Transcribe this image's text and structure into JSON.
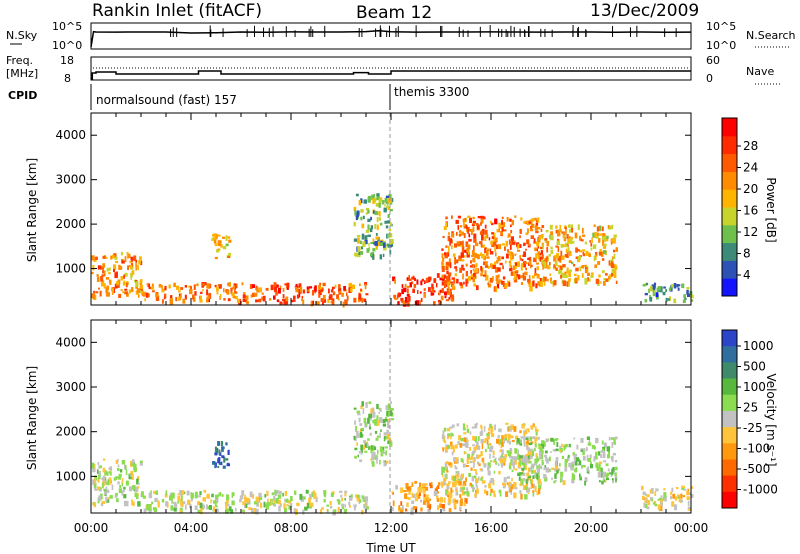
{
  "header": {
    "station": "Rankin Inlet (fitACF)",
    "beam": "Beam 12",
    "date": "13/Dec/2009"
  },
  "noise_panel": {
    "left_label": "N.Sky",
    "left_ticks": [
      "10^5",
      "10^0"
    ],
    "right_ticks": [
      "10^5",
      "10^0"
    ],
    "right_label": "N.Search"
  },
  "freq_panel": {
    "left_label_1": "Freq.",
    "left_label_2": "[MHz]",
    "left_ticks": [
      "18",
      "8"
    ],
    "right_ticks": [
      "60",
      "0"
    ],
    "right_label": "Nave"
  },
  "cpid_panel": {
    "label": "CPID",
    "programs": [
      {
        "name": "normalsound (fast) 157"
      },
      {
        "name": "themis 3300"
      }
    ]
  },
  "x_axis": {
    "label": "Time UT",
    "ticks": [
      "00:00",
      "04:00",
      "08:00",
      "12:00",
      "16:00",
      "20:00",
      "00:00"
    ]
  },
  "y_axis": {
    "label": "Slant Range [km]",
    "ticks": [
      "4000",
      "3000",
      "2000",
      "1000"
    ]
  },
  "power_scale": {
    "label": "Power [dB]",
    "ticks": [
      "28",
      "24",
      "20",
      "16",
      "12",
      "8",
      "4"
    ],
    "colors": [
      "#1414ff",
      "#2c52b6",
      "#3c8a78",
      "#6fbf4d",
      "#c8d42c",
      "#ffb400",
      "#ff8c00",
      "#ff5a00",
      "#ff2a00",
      "#ff0000"
    ]
  },
  "velocity_scale": {
    "label": "Velocity [m s⁻¹]",
    "ticks": [
      "1000",
      "500",
      "100",
      "25",
      "-25",
      "-100",
      "-500",
      "-1000"
    ],
    "colors": [
      "#2a45c8",
      "#2f6fa0",
      "#3f8a6a",
      "#56b83c",
      "#8cdc52",
      "#c2c2c2",
      "#ffc43a",
      "#ff9a10",
      "#ff6a00",
      "#ff3000",
      "#ff0000"
    ]
  },
  "chart_data": [
    {
      "type": "line",
      "panel": "noise",
      "x_range_hours": [
        0,
        24
      ],
      "y_scale": "log",
      "ylim": [
        1,
        100000
      ],
      "series": [
        {
          "x": [
            0,
            0.1,
            0.2,
            1,
            2,
            3,
            4,
            5,
            6,
            7,
            8,
            9,
            10,
            11,
            11.5,
            12,
            13,
            14,
            15,
            16,
            17,
            18,
            19,
            20,
            21,
            22,
            23,
            24
          ],
          "y": [
            1,
            3000,
            2500,
            2400,
            2600,
            2500,
            1500,
            1800,
            2500,
            2300,
            2700,
            2500,
            2600,
            3200,
            5000,
            3000,
            2400,
            2600,
            2500,
            2700,
            2500,
            2400,
            2600,
            2500,
            2300,
            2500,
            2200,
            2400
          ]
        }
      ]
    },
    {
      "type": "line",
      "panel": "frequency",
      "x_range_hours": [
        0,
        24
      ],
      "ylim": [
        8,
        18
      ],
      "series": [
        {
          "x": [
            0,
            0.05,
            0.2,
            1,
            3,
            4.2,
            4.3,
            5.2,
            5.3,
            8,
            10,
            10.5,
            11,
            11.1,
            11.9,
            12,
            24
          ],
          "y": [
            8,
            11,
            11.5,
            10.5,
            10.5,
            10.5,
            12,
            10.5,
            10.5,
            10.5,
            10.5,
            11.2,
            11.2,
            10.5,
            10.5,
            12,
            12
          ]
        }
      ]
    },
    {
      "type": "heatmap",
      "panel": "power",
      "x_range_hours": [
        0,
        24
      ],
      "ylim": [
        180,
        4500
      ],
      "z_range_db": [
        0,
        30
      ],
      "regions": [
        {
          "t": [
            0,
            2
          ],
          "r": [
            400,
            1400
          ],
          "db": 20
        },
        {
          "t": [
            2,
            6
          ],
          "r": [
            300,
            700
          ],
          "db": 22
        },
        {
          "t": [
            4.8,
            5.5
          ],
          "r": [
            1200,
            1800
          ],
          "db": 17
        },
        {
          "t": [
            6,
            11
          ],
          "r": [
            250,
            700
          ],
          "db": 24
        },
        {
          "t": [
            10.5,
            12
          ],
          "r": [
            1300,
            2700
          ],
          "db": 10
        },
        {
          "t": [
            12,
            14.5
          ],
          "r": [
            250,
            900
          ],
          "db": 27
        },
        {
          "t": [
            14,
            18
          ],
          "r": [
            600,
            2200
          ],
          "db": 22
        },
        {
          "t": [
            18,
            21
          ],
          "r": [
            700,
            2000
          ],
          "db": 18
        },
        {
          "t": [
            22,
            24
          ],
          "r": [
            300,
            700
          ],
          "db": 8
        }
      ]
    },
    {
      "type": "heatmap",
      "panel": "velocity",
      "x_range_hours": [
        0,
        24
      ],
      "ylim": [
        180,
        4500
      ],
      "z_range_ms": [
        -1000,
        1000
      ],
      "regions": [
        {
          "t": [
            0,
            2
          ],
          "r": [
            400,
            1400
          ],
          "v": 60
        },
        {
          "t": [
            4.8,
            5.5
          ],
          "r": [
            1200,
            1800
          ],
          "v": 900
        },
        {
          "t": [
            2,
            11
          ],
          "r": [
            250,
            700
          ],
          "v": 40
        },
        {
          "t": [
            10.5,
            12
          ],
          "r": [
            1300,
            2700
          ],
          "v": 120
        },
        {
          "t": [
            12,
            15
          ],
          "r": [
            250,
            900
          ],
          "v": -300
        },
        {
          "t": [
            14,
            18
          ],
          "r": [
            600,
            2200
          ],
          "v": -80
        },
        {
          "t": [
            17,
            21
          ],
          "r": [
            900,
            1900
          ],
          "v": 150
        },
        {
          "t": [
            22,
            24
          ],
          "r": [
            300,
            800
          ],
          "v": -60
        }
      ]
    }
  ]
}
